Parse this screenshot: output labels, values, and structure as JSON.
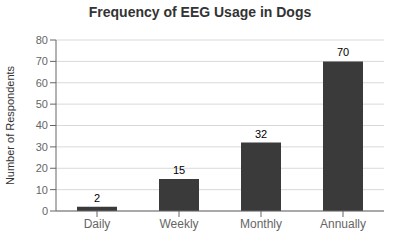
{
  "chart_data": {
    "type": "bar",
    "title": "Frequency of EEG Usage in Dogs",
    "categories": [
      "Daily",
      "Weekly",
      "Monthly",
      "Annually"
    ],
    "values": [
      2,
      15,
      32,
      70
    ],
    "color": "#3a3a3a",
    "ylabel": "Number of Respondents",
    "ylim": [
      0,
      80
    ],
    "yticks": [
      0,
      10,
      20,
      30,
      40,
      50,
      60,
      70,
      80
    ],
    "grid": true,
    "data_labels": true
  }
}
